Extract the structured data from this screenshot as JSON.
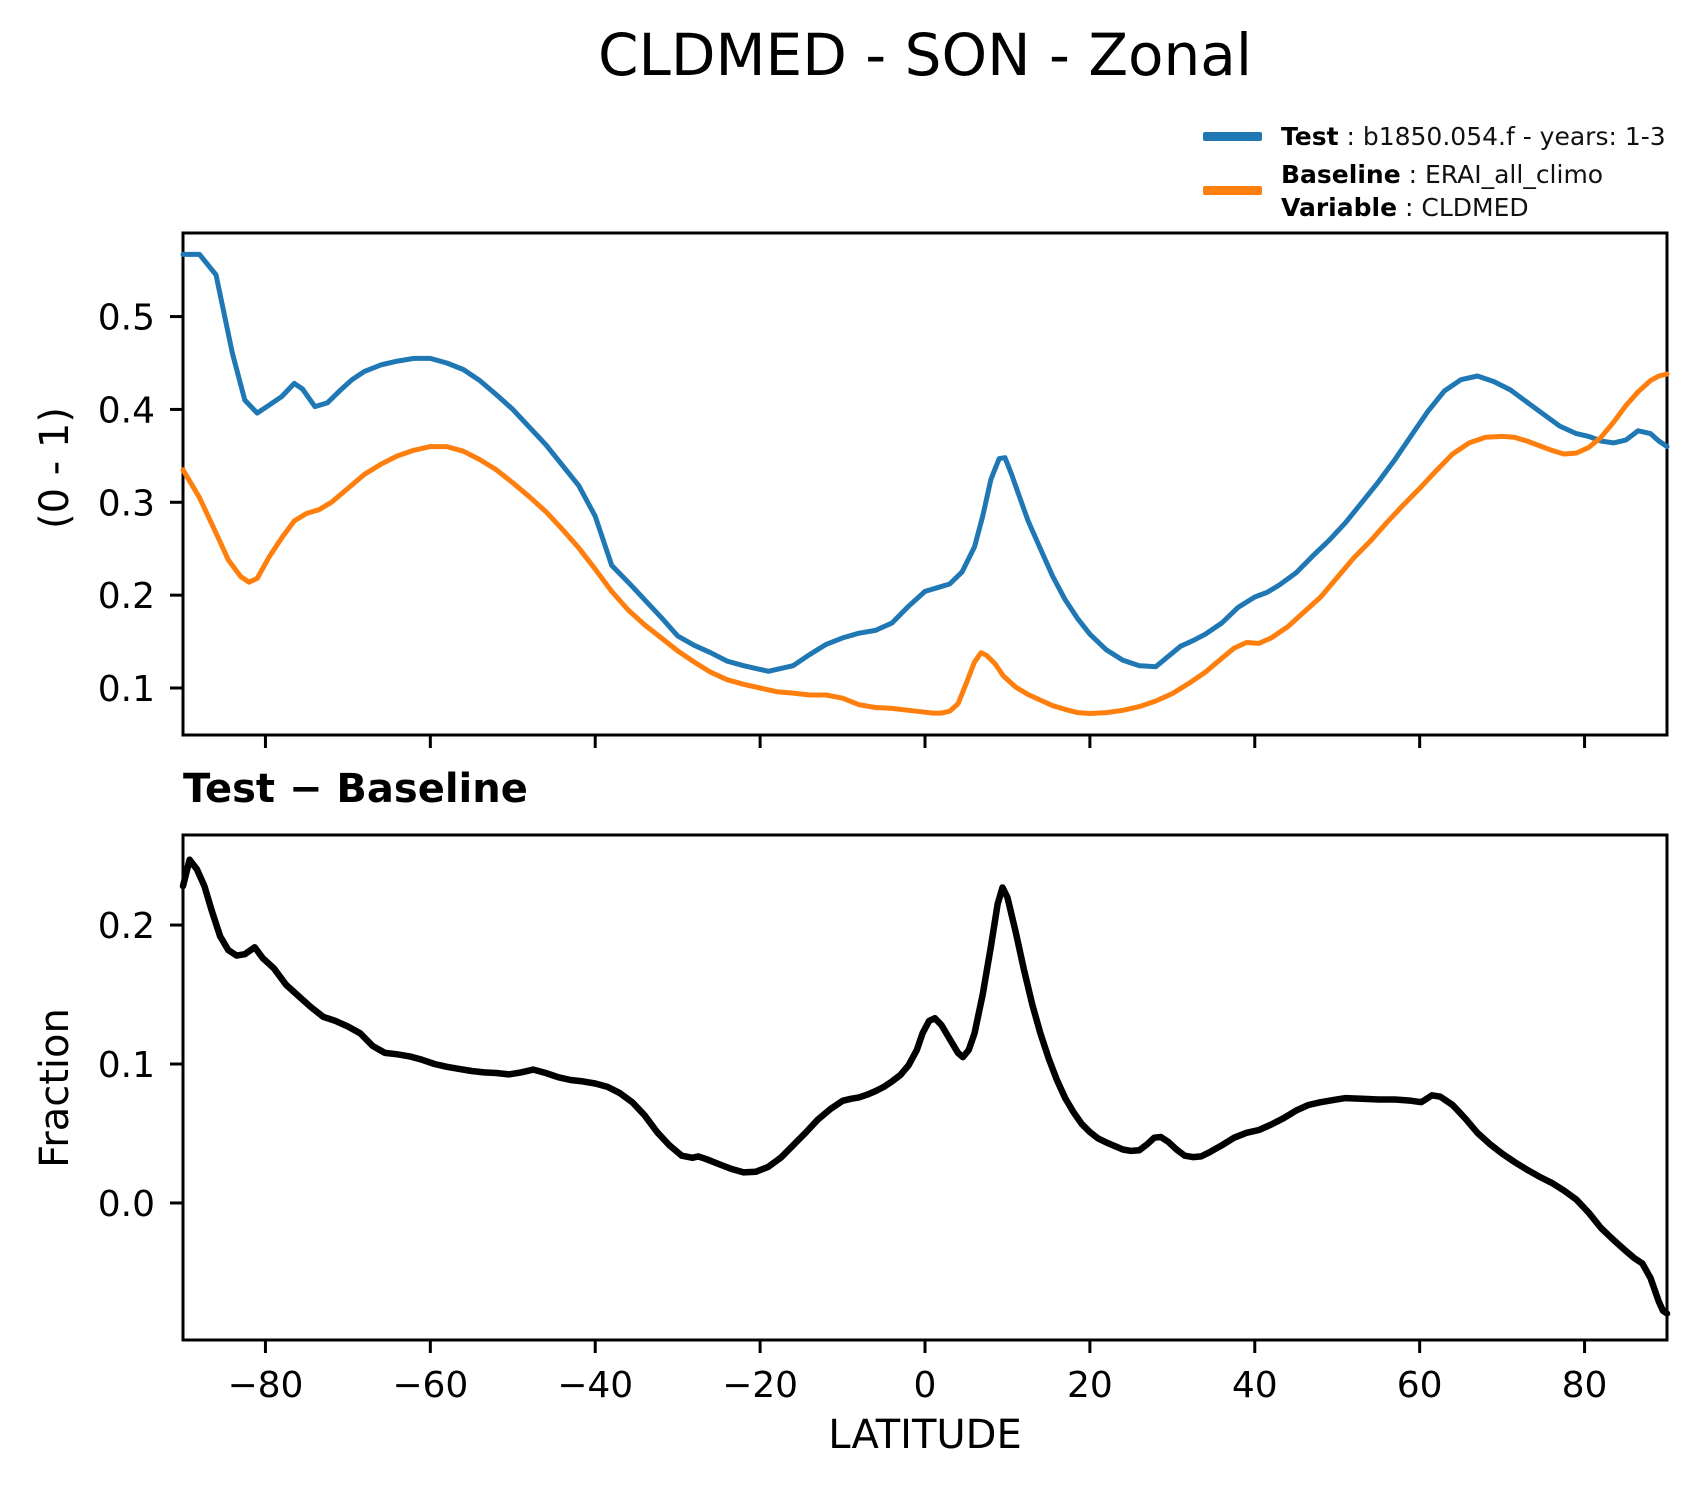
{
  "header": {
    "title": "CLDMED - SON - Zonal"
  },
  "legend": {
    "test_label": "Test",
    "test_value": " : b1850.054.f - years: 1-3",
    "baseline_label": "Baseline",
    "baseline_value": " : ERAI_all_climo",
    "variable_label": "Variable",
    "variable_value": " : CLDMED"
  },
  "colors": {
    "test": "#1f77b4",
    "baseline": "#ff7f0e",
    "diff": "#000000"
  },
  "chart_data": [
    {
      "type": "line",
      "title": "CLDMED - SON - Zonal",
      "xlabel": "",
      "ylabel": "(0 - 1)",
      "xlim": [
        -90,
        90
      ],
      "ylim": [
        0.0494,
        0.59
      ],
      "xticks": [
        -80,
        -60,
        -40,
        -20,
        0,
        20,
        40,
        60,
        80
      ],
      "x_tick_labels_visible": false,
      "yticks": [
        0.1,
        0.2,
        0.3,
        0.4,
        0.5
      ],
      "grid": false,
      "legend_position": "upper right outside",
      "series": [
        {
          "name": "Test",
          "color": "#1f77b4",
          "x": [
            -90,
            -88,
            -86,
            -84,
            -82.5,
            -81,
            -79.5,
            -78,
            -76.5,
            -75.5,
            -74,
            -72.5,
            -71,
            -69.5,
            -68,
            -66,
            -64,
            -62,
            -60,
            -58,
            -56,
            -54,
            -52,
            -50,
            -48,
            -46,
            -44,
            -42,
            -40,
            -38,
            -36,
            -34,
            -32,
            -30,
            -28,
            -26,
            -24,
            -22,
            -20,
            -19,
            -18,
            -16,
            -14,
            -12,
            -10,
            -8,
            -6,
            -4,
            -2,
            0,
            1.5,
            3,
            4.5,
            6,
            7,
            8,
            9,
            9.7,
            10.5,
            11.5,
            12.5,
            14,
            15.5,
            17,
            18.5,
            20,
            22,
            24,
            26,
            28,
            29.5,
            31,
            32.5,
            34,
            36,
            38,
            40,
            41.5,
            43,
            45,
            47,
            49,
            51,
            53,
            55,
            57,
            59,
            61,
            63,
            65,
            67,
            69,
            71,
            73,
            75,
            77,
            79,
            80.5,
            82,
            83.5,
            85,
            86.5,
            88,
            89,
            90
          ],
          "y": [
            0.567,
            0.567,
            0.545,
            0.46,
            0.41,
            0.396,
            0.405,
            0.414,
            0.428,
            0.422,
            0.403,
            0.407,
            0.42,
            0.432,
            0.441,
            0.448,
            0.452,
            0.455,
            0.455,
            0.45,
            0.443,
            0.431,
            0.416,
            0.4,
            0.381,
            0.362,
            0.34,
            0.318,
            0.285,
            0.232,
            0.214,
            0.195,
            0.176,
            0.156,
            0.146,
            0.138,
            0.129,
            0.124,
            0.12,
            0.118,
            0.12,
            0.124,
            0.136,
            0.147,
            0.154,
            0.159,
            0.162,
            0.17,
            0.188,
            0.204,
            0.208,
            0.212,
            0.225,
            0.252,
            0.285,
            0.325,
            0.347,
            0.348,
            0.33,
            0.305,
            0.28,
            0.25,
            0.22,
            0.195,
            0.175,
            0.158,
            0.141,
            0.13,
            0.124,
            0.123,
            0.134,
            0.145,
            0.151,
            0.158,
            0.17,
            0.187,
            0.198,
            0.203,
            0.211,
            0.224,
            0.242,
            0.259,
            0.278,
            0.3,
            0.322,
            0.346,
            0.372,
            0.398,
            0.42,
            0.432,
            0.436,
            0.43,
            0.421,
            0.408,
            0.395,
            0.382,
            0.374,
            0.371,
            0.366,
            0.364,
            0.367,
            0.377,
            0.374,
            0.366,
            0.36
          ]
        },
        {
          "name": "Baseline",
          "color": "#ff7f0e",
          "x": [
            -90,
            -88,
            -86,
            -84.5,
            -83,
            -82,
            -81,
            -79.5,
            -78,
            -76.5,
            -75,
            -73.5,
            -72,
            -70,
            -68,
            -66,
            -64,
            -62,
            -60,
            -58,
            -56,
            -54,
            -52,
            -50,
            -48,
            -46,
            -44,
            -42,
            -40,
            -38,
            -36,
            -34,
            -32,
            -30,
            -28,
            -26,
            -24,
            -22,
            -20,
            -18,
            -16,
            -14,
            -12,
            -10,
            -8,
            -6,
            -4,
            -2,
            0,
            1,
            2,
            3,
            4,
            5,
            6,
            6.8,
            7.5,
            8.5,
            9.5,
            11,
            12.5,
            14,
            15.5,
            17,
            18.5,
            20,
            22,
            24,
            26,
            28,
            30,
            32,
            34,
            36,
            37.5,
            39,
            40.5,
            42,
            44,
            46,
            48,
            50,
            52,
            54,
            56,
            58,
            60,
            62,
            64,
            66,
            68,
            70,
            71.5,
            73,
            74.5,
            76,
            77.5,
            79,
            80.5,
            82,
            83.5,
            85,
            86.5,
            88,
            89,
            90
          ],
          "y": [
            0.335,
            0.305,
            0.267,
            0.238,
            0.22,
            0.214,
            0.218,
            0.242,
            0.262,
            0.28,
            0.288,
            0.292,
            0.3,
            0.315,
            0.33,
            0.341,
            0.35,
            0.356,
            0.36,
            0.36,
            0.355,
            0.346,
            0.335,
            0.321,
            0.306,
            0.29,
            0.271,
            0.251,
            0.228,
            0.204,
            0.184,
            0.168,
            0.154,
            0.14,
            0.128,
            0.117,
            0.109,
            0.104,
            0.1,
            0.096,
            0.0945,
            0.0925,
            0.0925,
            0.089,
            0.082,
            0.079,
            0.078,
            0.076,
            0.074,
            0.073,
            0.073,
            0.075,
            0.083,
            0.105,
            0.128,
            0.138,
            0.135,
            0.126,
            0.113,
            0.101,
            0.093,
            0.087,
            0.081,
            0.077,
            0.0735,
            0.0725,
            0.0735,
            0.076,
            0.08,
            0.086,
            0.094,
            0.105,
            0.117,
            0.132,
            0.143,
            0.149,
            0.148,
            0.154,
            0.166,
            0.182,
            0.198,
            0.219,
            0.24,
            0.258,
            0.278,
            0.297,
            0.315,
            0.334,
            0.352,
            0.364,
            0.37,
            0.371,
            0.37,
            0.366,
            0.361,
            0.356,
            0.352,
            0.353,
            0.359,
            0.37,
            0.386,
            0.404,
            0.419,
            0.431,
            0.436,
            0.438
          ]
        }
      ]
    },
    {
      "type": "line",
      "title": "Test − Baseline",
      "xlabel": "LATITUDE",
      "ylabel": "Fraction",
      "xlim": [
        -90,
        90
      ],
      "ylim": [
        -0.0986,
        0.2648
      ],
      "xticks": [
        -80,
        -60,
        -40,
        -20,
        0,
        20,
        40,
        60,
        80
      ],
      "x_tick_labels_visible": true,
      "yticks": [
        0.0,
        0.1,
        0.2
      ],
      "grid": false,
      "series": [
        {
          "name": "Test - Baseline",
          "color": "#000000",
          "x": [
            -90,
            -89.2,
            -88.3,
            -87.4,
            -86.5,
            -85.5,
            -84.5,
            -83.5,
            -82.5,
            -81.3,
            -80.3,
            -79,
            -77.5,
            -76,
            -74.5,
            -73,
            -71.5,
            -70,
            -68.5,
            -67,
            -65.5,
            -64,
            -62.5,
            -61,
            -59.5,
            -58,
            -56.5,
            -55,
            -53.5,
            -52,
            -50.5,
            -49,
            -47.5,
            -46,
            -44.5,
            -43,
            -41.5,
            -40,
            -38.5,
            -37,
            -35.5,
            -34,
            -32.5,
            -31,
            -29.5,
            -28.2,
            -27.5,
            -26.5,
            -25,
            -23.5,
            -22,
            -20.5,
            -19,
            -17.5,
            -16,
            -14.5,
            -13,
            -11.5,
            -10,
            -9,
            -8,
            -7,
            -6,
            -5,
            -4,
            -3,
            -2,
            -1,
            -0.3,
            0.5,
            1.2,
            2,
            3,
            4,
            4.6,
            5.3,
            6,
            7,
            8,
            8.8,
            9.4,
            10,
            11,
            12,
            13,
            14,
            15,
            16,
            17,
            18,
            19,
            20,
            21,
            22,
            23,
            24,
            25,
            26,
            27,
            27.8,
            28.6,
            29.5,
            30.5,
            31.5,
            32.5,
            33.5,
            34.5,
            36,
            37.5,
            39,
            40.5,
            42,
            43.5,
            45,
            46.5,
            48,
            49.5,
            51,
            53,
            55,
            57,
            59,
            60.2,
            61.5,
            62.5,
            64,
            65.5,
            67,
            68.5,
            70,
            71.5,
            73,
            74.5,
            76,
            77.5,
            79,
            80.5,
            82,
            83.5,
            85,
            86,
            87,
            88,
            89,
            89.5,
            90
          ],
          "y": [
            0.228,
            0.247,
            0.24,
            0.228,
            0.21,
            0.192,
            0.182,
            0.178,
            0.179,
            0.184,
            0.176,
            0.169,
            0.157,
            0.149,
            0.141,
            0.134,
            0.131,
            0.127,
            0.122,
            0.113,
            0.108,
            0.107,
            0.1055,
            0.103,
            0.1,
            0.098,
            0.0965,
            0.095,
            0.094,
            0.0935,
            0.0925,
            0.094,
            0.096,
            0.0935,
            0.0905,
            0.0885,
            0.0875,
            0.086,
            0.0835,
            0.079,
            0.0725,
            0.063,
            0.051,
            0.0415,
            0.034,
            0.0325,
            0.0335,
            0.0315,
            0.028,
            0.0245,
            0.022,
            0.0225,
            0.026,
            0.0325,
            0.0415,
            0.0505,
            0.06,
            0.0675,
            0.0735,
            0.075,
            0.076,
            0.078,
            0.0805,
            0.0835,
            0.0875,
            0.092,
            0.099,
            0.11,
            0.122,
            0.131,
            0.133,
            0.128,
            0.118,
            0.108,
            0.105,
            0.11,
            0.122,
            0.15,
            0.185,
            0.215,
            0.227,
            0.22,
            0.195,
            0.168,
            0.143,
            0.122,
            0.104,
            0.0885,
            0.0755,
            0.0655,
            0.057,
            0.051,
            0.0465,
            0.0435,
            0.041,
            0.0385,
            0.0375,
            0.038,
            0.0425,
            0.047,
            0.0475,
            0.044,
            0.0385,
            0.034,
            0.033,
            0.0335,
            0.0365,
            0.0415,
            0.047,
            0.0505,
            0.0525,
            0.0565,
            0.061,
            0.0665,
            0.0705,
            0.0725,
            0.074,
            0.0755,
            0.075,
            0.0745,
            0.0745,
            0.0735,
            0.0725,
            0.0775,
            0.0765,
            0.0705,
            0.061,
            0.0505,
            0.0425,
            0.0355,
            0.0295,
            0.024,
            0.019,
            0.0145,
            0.009,
            0.0025,
            -0.007,
            -0.018,
            -0.0265,
            -0.0345,
            -0.0395,
            -0.0435,
            -0.054,
            -0.071,
            -0.0775,
            -0.0795
          ]
        }
      ]
    }
  ]
}
